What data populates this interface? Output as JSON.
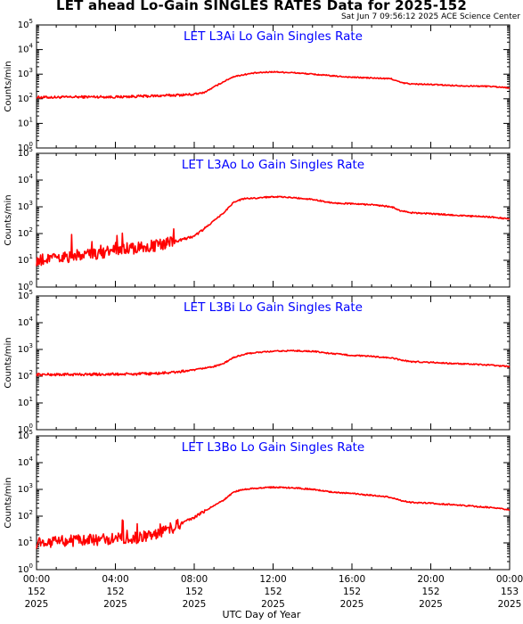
{
  "header": {
    "title": "LET ahead Lo-Gain SINGLES RATES Data for 2025-152",
    "timestamp": "Sat Jun  7 09:56:12 2025 ACE Science Center"
  },
  "colors": {
    "series": "#ff0000",
    "panel_title": "#0000ff",
    "axes": "#000000"
  },
  "chart_data": {
    "type": "line",
    "xlabel": "UTC Day of Year",
    "xlim": [
      0,
      24
    ],
    "x_ticks": [
      {
        "time": "00:00",
        "day": "152",
        "year": "2025"
      },
      {
        "time": "04:00",
        "day": "152",
        "year": "2025"
      },
      {
        "time": "08:00",
        "day": "152",
        "year": "2025"
      },
      {
        "time": "12:00",
        "day": "152",
        "year": "2025"
      },
      {
        "time": "16:00",
        "day": "152",
        "year": "2025"
      },
      {
        "time": "20:00",
        "day": "152",
        "year": "2025"
      },
      {
        "time": "00:00",
        "day": "153",
        "year": "2025"
      }
    ],
    "y_scale": "log",
    "panels": [
      {
        "title": "LET L3Ai Lo Gain Singles Rate",
        "ylabel": "Counts/min",
        "ylim": [
          1,
          100000
        ],
        "y_ticks": [
          "10^0",
          "10^1",
          "10^2",
          "10^3",
          "10^4",
          "10^5"
        ],
        "series": {
          "x": [
            0,
            1,
            2,
            3,
            4,
            5,
            6,
            7,
            8,
            8.5,
            9,
            9.5,
            10,
            10.5,
            11,
            12,
            13,
            14,
            15,
            16,
            17,
            18,
            18.5,
            19,
            20,
            21,
            22,
            23,
            24
          ],
          "values": [
            115,
            115,
            118,
            120,
            118,
            125,
            130,
            140,
            150,
            180,
            300,
            500,
            800,
            950,
            1100,
            1250,
            1150,
            1000,
            850,
            750,
            700,
            650,
            450,
            400,
            380,
            350,
            330,
            320,
            280
          ]
        }
      },
      {
        "title": "LET L3Ao Lo Gain Singles Rate",
        "ylabel": "Counts/min",
        "ylim": [
          1,
          100000
        ],
        "y_ticks": [
          "10^0",
          "10^1",
          "10^2",
          "10^3",
          "10^4",
          "10^5"
        ],
        "series": {
          "x": [
            0,
            1,
            2,
            3,
            4,
            5,
            6,
            7,
            8,
            8.5,
            9,
            9.5,
            10,
            10.5,
            11,
            12,
            13,
            14,
            15,
            16,
            17,
            18,
            18.5,
            19,
            20,
            21,
            22,
            23,
            24
          ],
          "values": [
            10,
            12,
            15,
            18,
            22,
            28,
            35,
            50,
            80,
            150,
            300,
            600,
            1500,
            2000,
            2100,
            2400,
            2200,
            1900,
            1400,
            1300,
            1200,
            1000,
            700,
            600,
            550,
            500,
            450,
            420,
            350
          ]
        }
      },
      {
        "title": "LET L3Bi Lo Gain Singles Rate",
        "ylabel": "Counts/min",
        "ylim": [
          1,
          100000
        ],
        "y_ticks": [
          "10^0",
          "10^1",
          "10^2",
          "10^3",
          "10^4",
          "10^5"
        ],
        "series": {
          "x": [
            0,
            1,
            2,
            3,
            4,
            5,
            6,
            7,
            8,
            8.5,
            9,
            9.5,
            10,
            10.5,
            11,
            12,
            13,
            14,
            15,
            16,
            17,
            18,
            18.5,
            19,
            20,
            21,
            22,
            23,
            24
          ],
          "values": [
            115,
            115,
            116,
            118,
            118,
            120,
            125,
            140,
            170,
            200,
            230,
            300,
            500,
            650,
            750,
            850,
            900,
            850,
            700,
            600,
            550,
            480,
            400,
            350,
            330,
            300,
            280,
            260,
            230
          ]
        }
      },
      {
        "title": "LET L3Bo Lo Gain Singles Rate",
        "ylabel": "Counts/min",
        "ylim": [
          1,
          100000
        ],
        "y_ticks": [
          "10^0",
          "10^1",
          "10^2",
          "10^3",
          "10^4",
          "10^5"
        ],
        "series": {
          "x": [
            0,
            1,
            2,
            3,
            4,
            5,
            6,
            7,
            8,
            8.5,
            9,
            9.5,
            10,
            10.5,
            11,
            12,
            13,
            14,
            15,
            16,
            17,
            18,
            18.5,
            19,
            20,
            21,
            22,
            23,
            24
          ],
          "values": [
            10,
            11,
            12,
            13,
            14,
            15,
            20,
            40,
            90,
            150,
            250,
            400,
            800,
            1000,
            1100,
            1200,
            1150,
            1000,
            800,
            700,
            600,
            500,
            380,
            330,
            300,
            270,
            240,
            210,
            170
          ]
        }
      }
    ]
  }
}
